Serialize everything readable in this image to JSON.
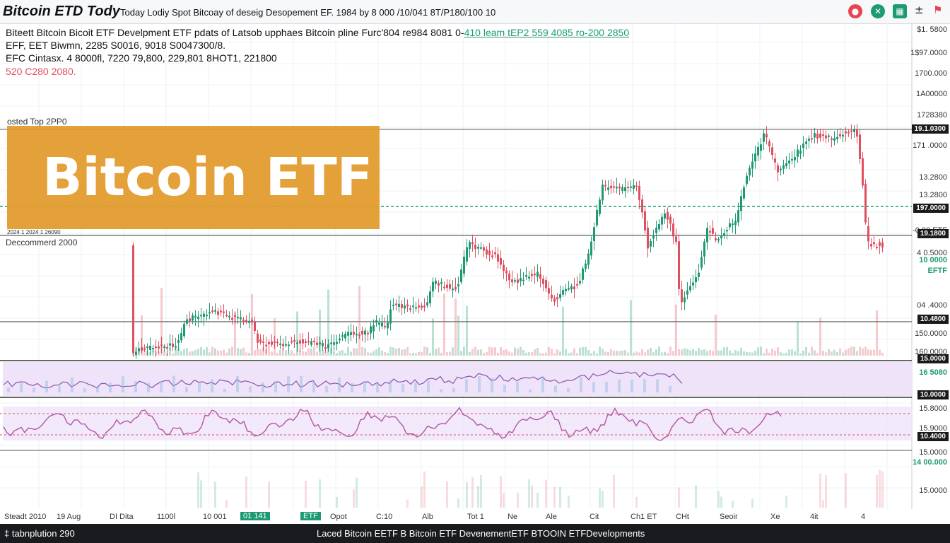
{
  "topbar": {
    "title": "Bitcoin ETD Tody",
    "subtitle": "Today Lodiy Spot Bitcoay of deseig Desopement EF. 1984 by 8 000 /10/041 8T/P180/100 10",
    "icons": [
      {
        "name": "alert-icon",
        "glyph": "●",
        "color": "#e8434f"
      },
      {
        "name": "refresh-icon",
        "glyph": "✕",
        "color": "#1e9a73"
      },
      {
        "name": "calendar-icon",
        "glyph": "▦",
        "color": "#1e9a73"
      },
      {
        "name": "plus-icon",
        "glyph": "±",
        "color": "#222222"
      },
      {
        "name": "flag-icon",
        "glyph": "⚑",
        "color": "#e8434f"
      }
    ]
  },
  "header": {
    "line1_main": "Biteett Bitcoin Bicoit ETF Develpment ETF pdats of Latsob upphaes Bitcoin pline Furc'804 re984 8081 0-",
    "line1_green": "410 leam tEP2 559 4085 ro-200 2850",
    "line2": "EFF, EET Biwmn, 2285 S0016, 9018 S0047300/8.",
    "line3": "EFC Cintasx. 4 8000fl, 7220 79,800, 229,801 8HOT1, 221800",
    "line4": "520 C280 2080."
  },
  "chart": {
    "banner_text": "Bitcoin ETF",
    "label_top": "osted Top 2PP0",
    "label_small": "2024 1 2024 1 26090",
    "label_doc": "Deccommerd 2000"
  },
  "price_axis": [
    {
      "label": "$1. 5800",
      "y": 36
    },
    {
      "label": "1$97.0000",
      "y": 69
    },
    {
      "label": "1700.000",
      "y": 98
    },
    {
      "label": "1A00000",
      "y": 127
    },
    {
      "label": "1728380",
      "y": 157
    },
    {
      "label": "171 .0000",
      "y": 200
    },
    {
      "label": "13.2800",
      "y": 245
    },
    {
      "label": "13.2800",
      "y": 270
    },
    {
      "label": "-0.00 ETF",
      "y": 320
    },
    {
      "label": "4 0.5000",
      "y": 352
    },
    {
      "label": "04 .4000",
      "y": 426
    },
    {
      "label": "150.0000",
      "y": 466
    },
    {
      "label": "160.0000",
      "y": 492
    },
    {
      "label": "15.8000",
      "y": 572
    },
    {
      "label": "15.9000",
      "y": 600
    },
    {
      "label": "15.0000",
      "y": 634
    },
    {
      "label": "15.0000",
      "y": 688
    }
  ],
  "price_tags": [
    {
      "label": "19.1.0300",
      "y": 176
    },
    {
      "label": "197.0000",
      "y": 288
    },
    {
      "label": "19.1800",
      "y": 324
    },
    {
      "label": "10.4800",
      "y": 445
    },
    {
      "label": "15.0000",
      "y": 501
    },
    {
      "label": "10.0000",
      "y": 552
    },
    {
      "label": "10.4000",
      "y": 611
    }
  ],
  "price_green": [
    {
      "label": "10 0000",
      "y": 362
    },
    {
      "label": "EFTF",
      "y": 377
    },
    {
      "label": "16 5080",
      "y": 521
    },
    {
      "label": "14 00.000",
      "y": 648
    }
  ],
  "x_axis": [
    {
      "label": "Steadt 2010",
      "x": 6
    },
    {
      "label": "19 Aug",
      "x": 80
    },
    {
      "label": "DI Dita",
      "x": 155
    },
    {
      "label": "1100l",
      "x": 222
    },
    {
      "label": "10 001",
      "x": 287
    },
    {
      "label": "Opot",
      "x": 467
    },
    {
      "label": "C:10",
      "x": 532
    },
    {
      "label": "Alb",
      "x": 597
    },
    {
      "label": "Tot 1",
      "x": 661
    },
    {
      "label": "Ne",
      "x": 718
    },
    {
      "label": "Ale",
      "x": 772
    },
    {
      "label": "Cit",
      "x": 834
    },
    {
      "label": "Ch1 ET",
      "x": 892
    },
    {
      "label": "CHt",
      "x": 956
    },
    {
      "label": "Seoir",
      "x": 1018
    },
    {
      "label": "Xe",
      "x": 1090
    },
    {
      "label": "4it",
      "x": 1146
    },
    {
      "label": "4",
      "x": 1218
    }
  ],
  "x_tags": [
    {
      "label": "01 141",
      "x": 340
    },
    {
      "label": "ETF",
      "x": 425
    }
  ],
  "statusbar": {
    "left": "‡ tabnplution 290",
    "center": "Laced Bitcoin EETF B Bitcoin ETF DevenementETF BTOOIN ETFDevelopments"
  },
  "colors": {
    "up": "#1e9a73",
    "down": "#e04f5f",
    "banner": "#e39a2b",
    "indicator_fill": "#efe3fa"
  }
}
